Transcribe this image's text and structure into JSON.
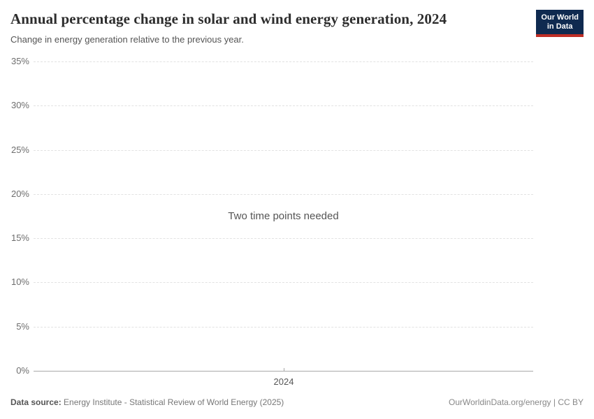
{
  "header": {
    "title": "Annual percentage change in solar and wind energy generation, 2024",
    "subtitle": "Change in energy generation relative to the previous year.",
    "logo": {
      "line1": "Our World",
      "line2": "in Data",
      "bg_color": "#0f2a50",
      "accent_color": "#bf2e26"
    }
  },
  "chart_data": {
    "type": "line",
    "title": "Annual percentage change in solar and wind energy generation, 2024",
    "subtitle": "Change in energy generation relative to the previous year.",
    "series": [],
    "empty_message": "Two time points needed",
    "x_ticks": [
      "2024"
    ],
    "y_ticks": [
      "0%",
      "5%",
      "10%",
      "15%",
      "20%",
      "25%",
      "30%",
      "35%"
    ],
    "ylim": [
      0,
      35
    ],
    "xlabel": "",
    "ylabel": "",
    "grid": "horizontal-dashed",
    "legend_position": "none",
    "axis_color": "#a8a8a8",
    "gridline_color": "#e2e2e2"
  },
  "footer": {
    "data_source_label": "Data source:",
    "data_source_value": " Energy Institute - Statistical Review of World Energy (2025)",
    "link_text": "OurWorldinData.org/energy | CC BY"
  }
}
